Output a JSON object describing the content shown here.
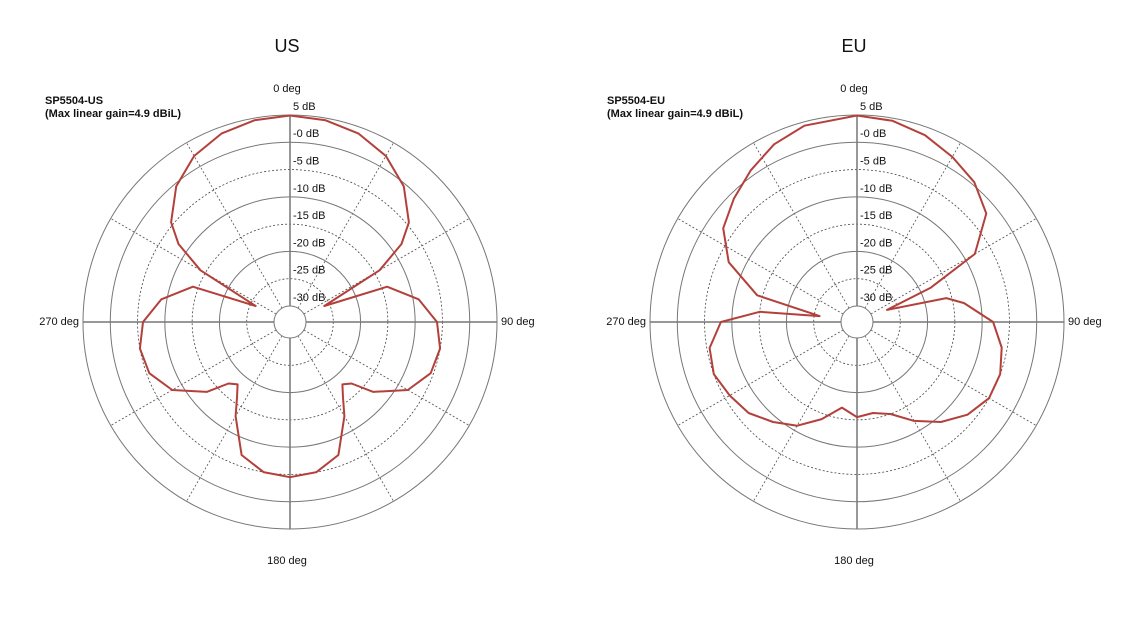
{
  "chart_data": [
    {
      "type": "polar",
      "title": "US",
      "subtitle": [
        "SP5504-US",
        "(Max linear gain=4.9 dBiL)"
      ],
      "color": "#b3403b",
      "rlim": [
        -30,
        5
      ],
      "rticks": [
        {
          "value": 5,
          "label": "5 dB"
        },
        {
          "value": 0,
          "label": "-0 dB"
        },
        {
          "value": -5,
          "label": "-5 dB"
        },
        {
          "value": -10,
          "label": "-10 dB"
        },
        {
          "value": -15,
          "label": "-15 dB"
        },
        {
          "value": -20,
          "label": "-20 dB"
        },
        {
          "value": -25,
          "label": "-25 dB"
        },
        {
          "value": -30,
          "label": "-30 dB"
        }
      ],
      "thetaticks": [
        {
          "value": 0,
          "label": "0 deg"
        },
        {
          "value": 90,
          "label": "90 deg"
        },
        {
          "value": 180,
          "label": "180 deg"
        },
        {
          "value": 270,
          "label": "270 deg"
        }
      ],
      "x": [
        0,
        10,
        20,
        30,
        40,
        50,
        55,
        60,
        65,
        70,
        80,
        90,
        100,
        110,
        120,
        130,
        135,
        140,
        145,
        150,
        160,
        170,
        180,
        190,
        200,
        210,
        215,
        220,
        225,
        230,
        240,
        250,
        260,
        270,
        280,
        290,
        295,
        300,
        305,
        310,
        320,
        330,
        340,
        350
      ],
      "values": [
        4.9,
        4.6,
        3.8,
        2.2,
        -0.5,
        -4.5,
        -8,
        -14,
        -26,
        -14,
        -9,
        -6,
        -5,
        -5.5,
        -8,
        -13,
        -17,
        -18,
        -16,
        -13,
        -7,
        -5,
        -4.5,
        -5,
        -7,
        -13,
        -16,
        -18,
        -17,
        -13,
        -8,
        -5.5,
        -5,
        -6,
        -9,
        -14,
        -26,
        -14,
        -8,
        -4.5,
        -0.5,
        2.2,
        3.8,
        4.6
      ]
    },
    {
      "type": "polar",
      "title": "EU",
      "subtitle": [
        "SP5504-EU",
        "(Max linear gain=4.9 dBiL)"
      ],
      "color": "#b3403b",
      "rlim": [
        -30,
        5
      ],
      "rticks": [
        {
          "value": 5,
          "label": "5 dB"
        },
        {
          "value": 0,
          "label": "-0 dB"
        },
        {
          "value": -5,
          "label": "-5 dB"
        },
        {
          "value": -10,
          "label": "-10 dB"
        },
        {
          "value": -15,
          "label": "-15 dB"
        },
        {
          "value": -20,
          "label": "-20 dB"
        },
        {
          "value": -25,
          "label": "-25 dB"
        },
        {
          "value": -30,
          "label": "-30 dB"
        }
      ],
      "thetaticks": [
        {
          "value": 0,
          "label": "0 deg"
        },
        {
          "value": 90,
          "label": "90 deg"
        },
        {
          "value": 180,
          "label": "180 deg"
        },
        {
          "value": 270,
          "label": "270 deg"
        }
      ],
      "x": [
        0,
        10,
        20,
        30,
        40,
        50,
        60,
        65,
        68,
        75,
        80,
        90,
        100,
        110,
        120,
        130,
        140,
        150,
        160,
        170,
        180,
        190,
        200,
        210,
        220,
        230,
        240,
        250,
        260,
        270,
        276,
        279,
        285,
        295,
        305,
        315,
        325,
        335,
        345
      ],
      "values": [
        4.9,
        4.5,
        3.5,
        2,
        0.5,
        -2,
        -8,
        -18,
        -27,
        -16,
        -13,
        -8,
        -6,
        -5,
        -5,
        -6.5,
        -9,
        -12,
        -15,
        -16,
        -15.5,
        -17,
        -14,
        -11,
        -9,
        -7,
        -6,
        -5,
        -5.5,
        -8,
        -15,
        -26,
        -14,
        -7,
        -3,
        -1,
        1,
        3,
        4.3
      ]
    }
  ]
}
